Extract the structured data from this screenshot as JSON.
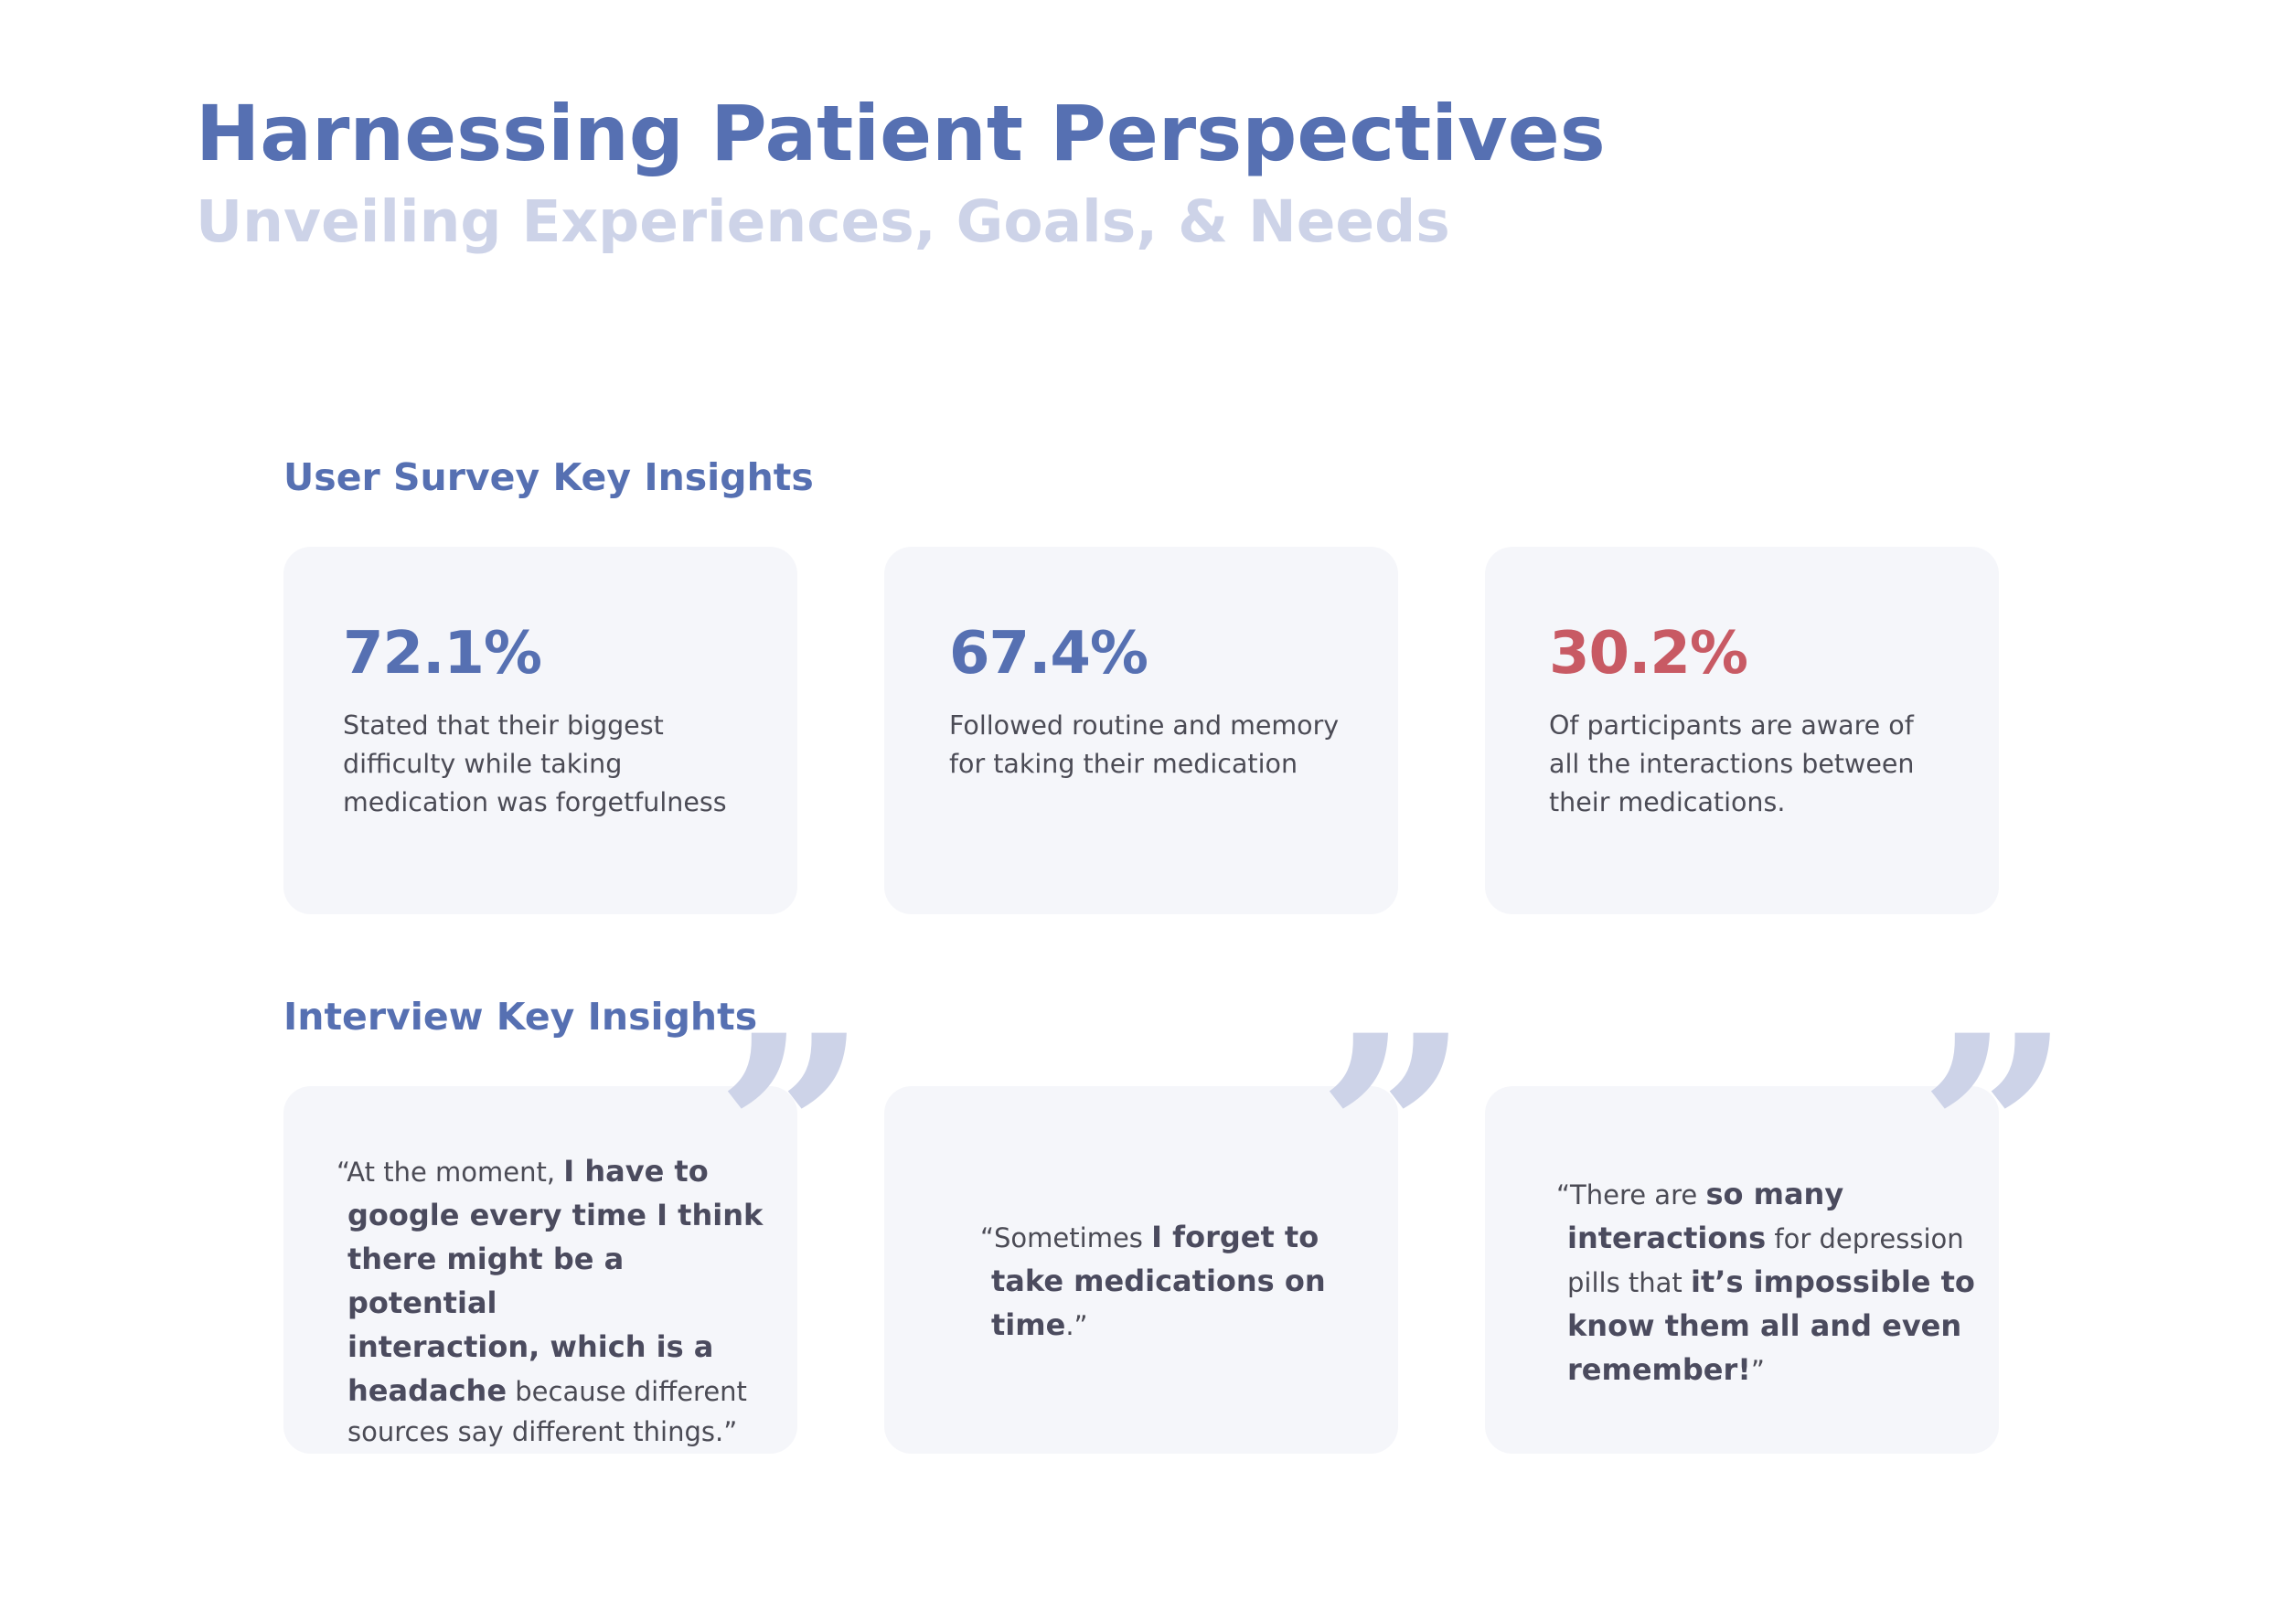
{
  "header": {
    "title": "Harnessing Patient Perspectives",
    "subtitle": "Unveiling Experiences, Goals, & Needs"
  },
  "survey": {
    "heading": "User Survey Key Insights",
    "cards": [
      {
        "value": "72.1%",
        "description": "Stated that their biggest difficulty while taking medication was forgetfulness"
      },
      {
        "value": "67.4%",
        "description": "Followed routine and memory for taking their medication"
      },
      {
        "value": "30.2%",
        "description": "Of participants are aware of all the interactions between their medications."
      }
    ]
  },
  "interview": {
    "heading": "Interview Key Insights",
    "quote_mark": "”",
    "quotes": [
      {
        "open": "“At the moment, ",
        "bold1": "I have to",
        "bold2": "google every time I think",
        "bold3": "there might be a potential",
        "bold4": "interaction, which is a",
        "bold5": "headache",
        "rest1": " because different",
        "rest2": "sources say different things.”"
      },
      {
        "open": "“Sometimes ",
        "bold1": "I forget to",
        "bold2": "take medications on",
        "bold3": "time",
        "close": ".”"
      },
      {
        "open": "“There are ",
        "bold1": "so many",
        "bold2": "interactions",
        "rest1": " for depression",
        "rest2": "pills that ",
        "bold3": "it’s impossible to",
        "bold4": "know them all and even",
        "bold5": "remember!",
        "close": "”"
      }
    ]
  },
  "colors": {
    "accent": "#5670b2",
    "accent_light": "#cdd3e8",
    "negative": "#c85a64",
    "card_bg": "#f5f6fa",
    "text": "#4b4b55"
  }
}
